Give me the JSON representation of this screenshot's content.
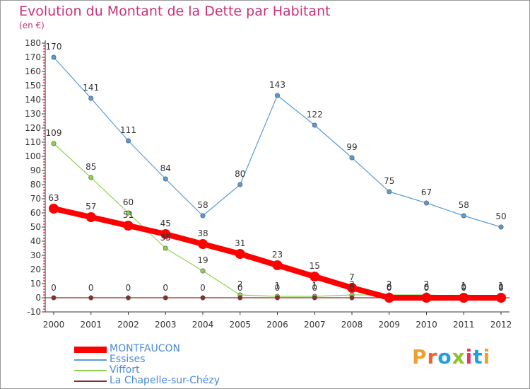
{
  "title": "Evolution du Montant de la Dette par Habitant",
  "unit_label": "(en €)",
  "logo": {
    "text": "Proxiti",
    "colors": [
      "#f0a030",
      "#f06030",
      "#20a0e0",
      "#90c030",
      "#f03060",
      "#20a0e0",
      "#f0a030"
    ]
  },
  "chart_data": {
    "type": "line",
    "title": "Evolution du Montant de la Dette par Habitant",
    "ylabel": "(en €)",
    "xlabel": "",
    "ylim": [
      -10,
      180
    ],
    "yticks": [
      -10,
      0,
      10,
      20,
      30,
      40,
      50,
      60,
      70,
      80,
      90,
      100,
      110,
      120,
      130,
      140,
      150,
      160,
      170,
      180
    ],
    "grid": false,
    "legend_position": "bottom-left",
    "x": [
      "2000",
      "2001",
      "2002",
      "2003",
      "2004",
      "2005",
      "2006",
      "2007",
      "2008",
      "2009",
      "2010",
      "2011",
      "2012"
    ],
    "series": [
      {
        "name": "Essises",
        "color": "#5b9bd5",
        "values": [
          170,
          141,
          111,
          84,
          58,
          80,
          143,
          122,
          99,
          75,
          67,
          58,
          50
        ],
        "labels": [
          "170",
          "141",
          "111",
          "84",
          "58",
          "80",
          "143",
          "122",
          "99",
          "75",
          "67",
          "58",
          "50"
        ]
      },
      {
        "name": "Viffort",
        "color": "#8fd14f",
        "values": [
          109,
          85,
          60,
          35,
          19,
          2,
          1,
          1,
          2,
          2,
          2,
          1,
          1
        ],
        "labels": [
          "109",
          "85",
          "60",
          "35",
          "19",
          "2",
          "1",
          "1",
          "2",
          "2",
          "2",
          "1",
          "1"
        ]
      },
      {
        "name": "La Chapelle-sur-Chézy",
        "color": "#8b2c2c",
        "values": [
          0,
          0,
          0,
          0,
          0,
          0,
          0,
          0,
          0,
          0,
          0,
          0,
          0
        ],
        "labels": [
          "0",
          "0",
          "0",
          "0",
          "0",
          "0",
          "0",
          "0",
          "0",
          "0",
          "0",
          "0",
          "0"
        ]
      },
      {
        "name": "MONTFAUCON",
        "color": "#ff0000",
        "values": [
          63,
          57,
          51,
          45,
          38,
          31,
          23,
          15,
          7,
          0,
          0,
          0,
          0
        ],
        "labels": [
          "63",
          "57",
          "51",
          "45",
          "38",
          "31",
          "23",
          "15",
          "7",
          "0",
          "0",
          "0",
          "0"
        ]
      }
    ]
  },
  "legend": [
    {
      "name": "MONTFAUCON",
      "color": "#ff0000",
      "text_color": "#4a8ad8"
    },
    {
      "name": "Essises",
      "color": "#5b9bd5",
      "text_color": "#4a8ad8"
    },
    {
      "name": "Viffort",
      "color": "#8fd14f",
      "text_color": "#4a8ad8"
    },
    {
      "name": "La Chapelle-sur-Chézy",
      "color": "#8b2c2c",
      "text_color": "#4a8ad8"
    }
  ]
}
